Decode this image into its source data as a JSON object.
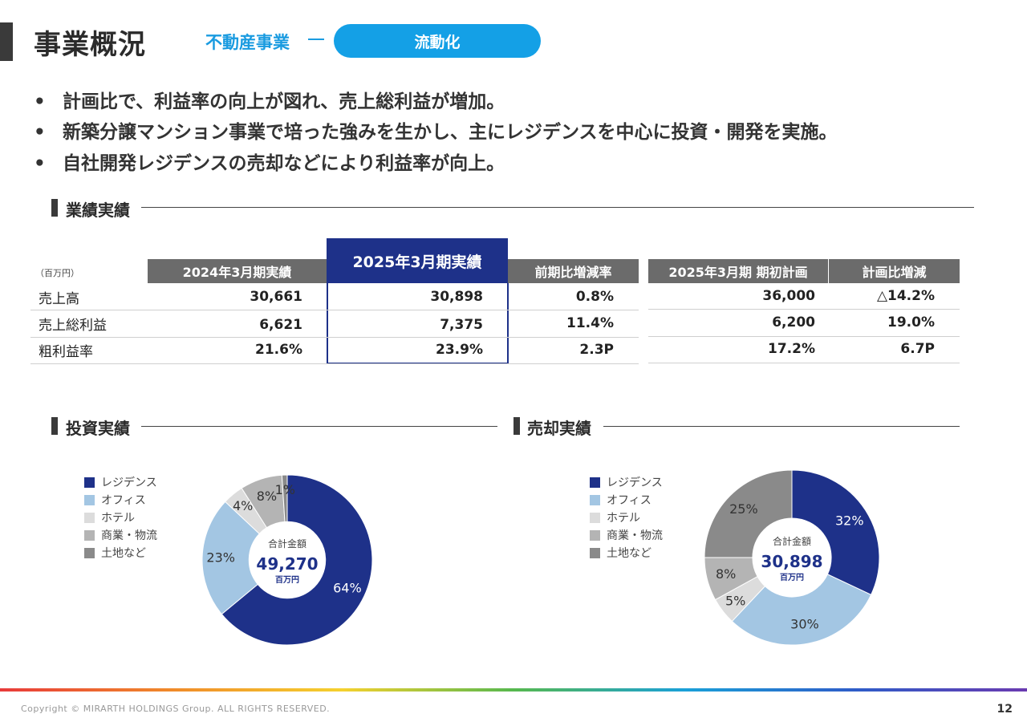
{
  "header": {
    "title": "事業概況",
    "section": "不動産事業",
    "tag": "流動化"
  },
  "bullets": [
    "計画比で、利益率の向上が図れ、売上総利益が増加。",
    "新築分譲マンション事業で培った強みを生かし、主にレジデンスを中心に投資・開発を実施。",
    "自社開発レジデンスの売却などにより利益率が向上。"
  ],
  "results": {
    "section_title": "業績実績",
    "unit": "（百万円）",
    "headers": [
      "2024年3月期実績",
      "2025年3月期実績",
      "前期比増減率",
      "2025年3月期 期初計画",
      "計画比増減"
    ],
    "rows": [
      {
        "label": "売上高",
        "fy2024": "30,661",
        "fy2025": "30,898",
        "yoy": "0.8%",
        "plan": "36,000",
        "vs_plan": "△14.2%"
      },
      {
        "label": "売上総利益",
        "fy2024": "6,621",
        "fy2025": "7,375",
        "yoy": "11.4%",
        "plan": "6,200",
        "vs_plan": "19.0%"
      },
      {
        "label": "粗利益率",
        "fy2024": "21.6%",
        "fy2025": "23.9%",
        "yoy": "2.3P",
        "plan": "17.2%",
        "vs_plan": "6.7P"
      }
    ]
  },
  "legend": [
    "レジデンス",
    "オフィス",
    "ホテル",
    "商業・物流",
    "土地など"
  ],
  "colors": {
    "residence": "#1e3189",
    "office": "#a3c6e3",
    "hotel": "#dcdcdc",
    "commercial": "#b4b4b4",
    "land": "#8a8a8a"
  },
  "chart_data": [
    {
      "type": "pie",
      "title": "投資実績",
      "categories": [
        "レジデンス",
        "オフィス",
        "ホテル",
        "商業・物流",
        "土地など"
      ],
      "values": [
        64,
        23,
        4,
        8,
        1
      ],
      "labels": [
        "64%",
        "23%",
        "4%",
        "8%",
        "1%"
      ],
      "center_caption": "合計金額",
      "center_value": "49,270",
      "center_unit": "百万円"
    },
    {
      "type": "pie",
      "title": "売却実績",
      "categories": [
        "レジデンス",
        "オフィス",
        "ホテル",
        "商業・物流",
        "土地など"
      ],
      "values": [
        32,
        30,
        5,
        8,
        25
      ],
      "labels": [
        "32%",
        "30%",
        "5%",
        "8%",
        "25%"
      ],
      "center_caption": "合計金額",
      "center_value": "30,898",
      "center_unit": "百万円"
    }
  ],
  "footer": {
    "copyright": "Copyright © MIRARTH HOLDINGS Group. ALL RIGHTS RESERVED.",
    "page": "12"
  }
}
